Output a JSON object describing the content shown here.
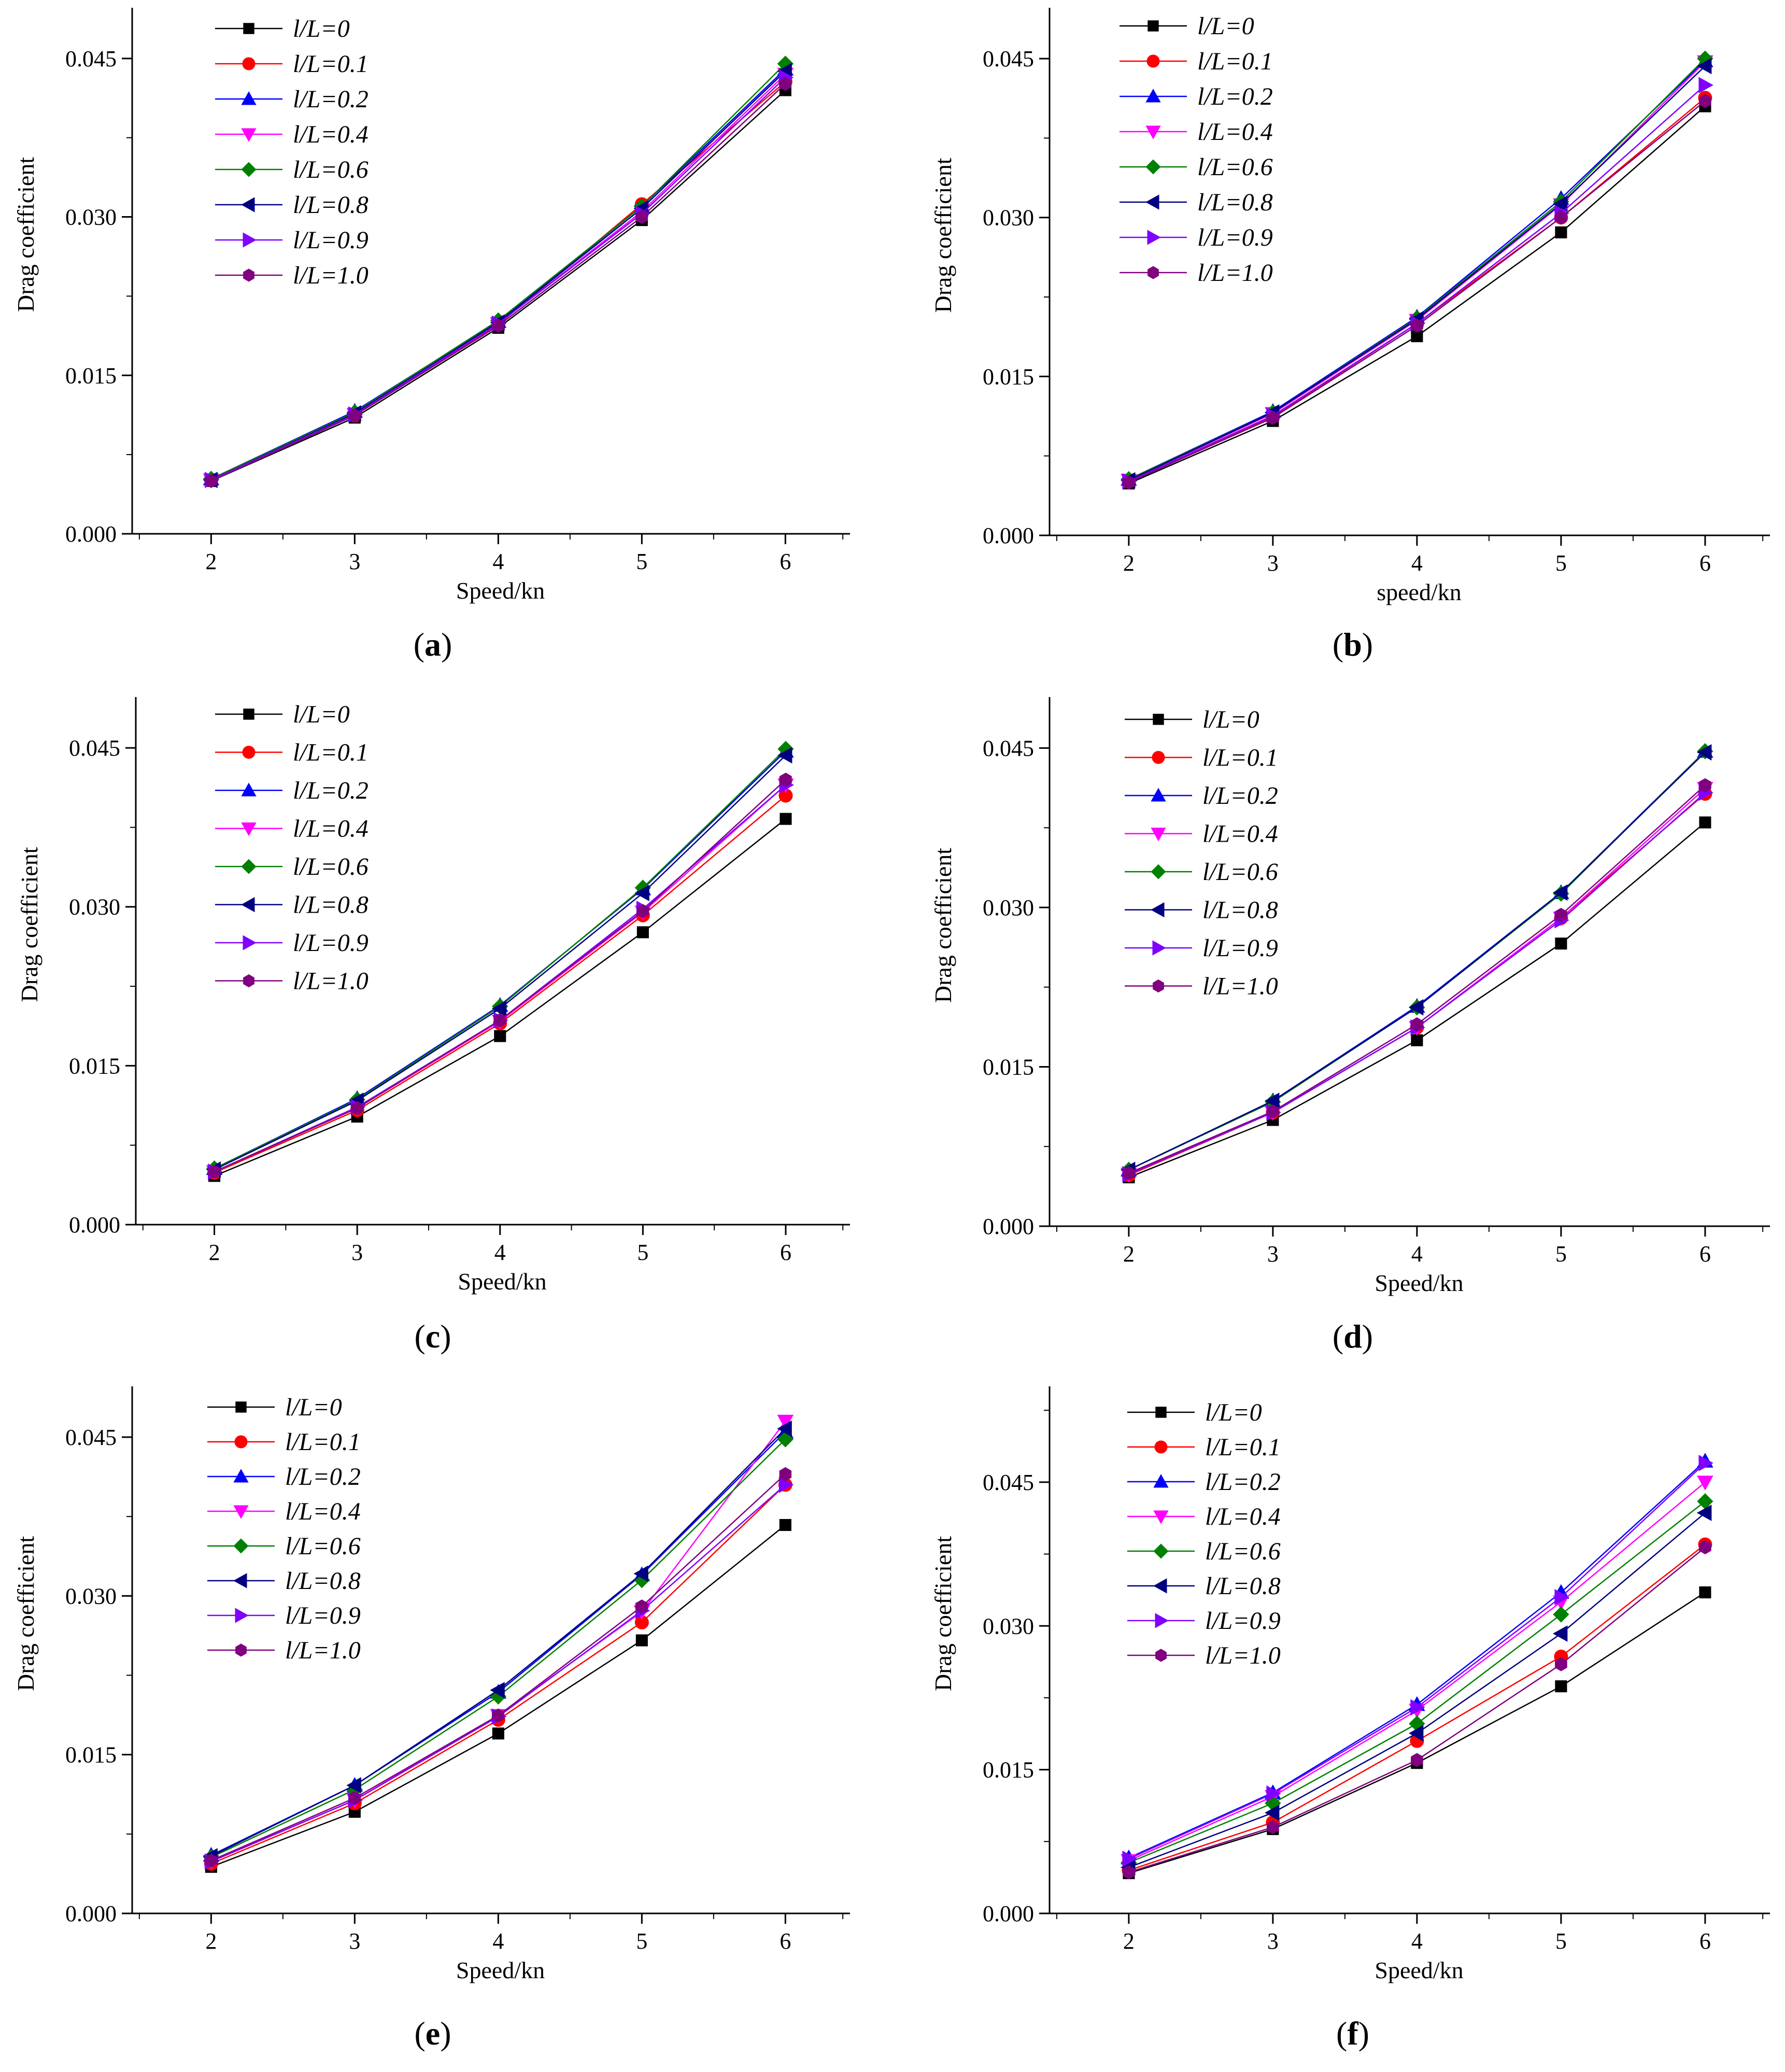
{
  "figure": {
    "series_names": [
      "l/L=0",
      "l/L=0.1",
      "l/L=0.2",
      "l/L=0.4",
      "l/L=0.6",
      "l/L=0.8",
      "l/L=0.9",
      "l/L=1.0"
    ],
    "series_colors": [
      "#000000",
      "#ff0000",
      "#0000ff",
      "#ff00ff",
      "#008000",
      "#000080",
      "#8000ff",
      "#800080"
    ],
    "series_markers": [
      "square",
      "circle",
      "triangle-up",
      "triangle-down",
      "diamond",
      "triangle-left",
      "triangle-right",
      "hexagon"
    ]
  },
  "chart_data": [
    {
      "type": "line",
      "caption_letter": "a",
      "xlabel": "Speed/kn",
      "ylabel": "Drag coefficient",
      "x": [
        2,
        3,
        4,
        5,
        6
      ],
      "xticks": [
        "2",
        "3",
        "4",
        "5",
        "6"
      ],
      "yticks": [
        "0.000",
        "0.015",
        "0.030",
        "0.045"
      ],
      "xlim": [
        1.45,
        6.45
      ],
      "ylim": [
        0,
        0.0498
      ],
      "series": [
        {
          "name": "l/L=0",
          "values": [
            0.005,
            0.011,
            0.0195,
            0.0297,
            0.042
          ]
        },
        {
          "name": "l/L=0.1",
          "values": [
            0.0051,
            0.0112,
            0.0198,
            0.0312,
            0.0428
          ]
        },
        {
          "name": "l/L=0.2",
          "values": [
            0.0052,
            0.0116,
            0.0201,
            0.031,
            0.044
          ]
        },
        {
          "name": "l/L=0.4",
          "values": [
            0.0051,
            0.0113,
            0.0199,
            0.0305,
            0.0435
          ]
        },
        {
          "name": "l/L=0.6",
          "values": [
            0.0052,
            0.0115,
            0.0202,
            0.031,
            0.0445
          ]
        },
        {
          "name": "l/L=0.8",
          "values": [
            0.0051,
            0.0114,
            0.02,
            0.0308,
            0.0438
          ]
        },
        {
          "name": "l/L=0.9",
          "values": [
            0.0051,
            0.0113,
            0.0199,
            0.0303,
            0.0432
          ]
        },
        {
          "name": "l/L=1.0",
          "values": [
            0.005,
            0.0112,
            0.0197,
            0.03,
            0.0426
          ]
        }
      ]
    },
    {
      "type": "line",
      "caption_letter": "b",
      "xlabel": "speed/kn",
      "ylabel": "Drag coefficient",
      "x": [
        2,
        3,
        4,
        5,
        6
      ],
      "xticks": [
        "2",
        "3",
        "4",
        "5",
        "6"
      ],
      "yticks": [
        "0.000",
        "0.015",
        "0.030",
        "0.045"
      ],
      "xlim": [
        1.45,
        6.45
      ],
      "ylim": [
        0,
        0.0498
      ],
      "series": [
        {
          "name": "l/L=0",
          "values": [
            0.0049,
            0.0108,
            0.0188,
            0.0286,
            0.0405
          ]
        },
        {
          "name": "l/L=0.1",
          "values": [
            0.0051,
            0.0112,
            0.02,
            0.03,
            0.0413
          ]
        },
        {
          "name": "l/L=0.2",
          "values": [
            0.0053,
            0.0117,
            0.0206,
            0.0318,
            0.0448
          ]
        },
        {
          "name": "l/L=0.4",
          "values": [
            0.0052,
            0.0115,
            0.0203,
            0.0312,
            0.0447
          ]
        },
        {
          "name": "l/L=0.6",
          "values": [
            0.0053,
            0.0116,
            0.0205,
            0.0315,
            0.045
          ]
        },
        {
          "name": "l/L=0.8",
          "values": [
            0.0052,
            0.0116,
            0.0204,
            0.0313,
            0.0443
          ]
        },
        {
          "name": "l/L=0.9",
          "values": [
            0.0051,
            0.0113,
            0.02,
            0.0304,
            0.0425
          ]
        },
        {
          "name": "l/L=1.0",
          "values": [
            0.005,
            0.0111,
            0.0198,
            0.03,
            0.041
          ]
        }
      ]
    },
    {
      "type": "line",
      "caption_letter": "c",
      "xlabel": "Speed/kn",
      "ylabel": "Drag coefficient",
      "x": [
        2,
        3,
        4,
        5,
        6
      ],
      "xticks": [
        "2",
        "3",
        "4",
        "5",
        "6"
      ],
      "yticks": [
        "0.000",
        "0.015",
        "0.030",
        "0.045"
      ],
      "xlim": [
        1.45,
        6.45
      ],
      "ylim": [
        0,
        0.0498
      ],
      "series": [
        {
          "name": "l/L=0",
          "values": [
            0.0046,
            0.0102,
            0.0178,
            0.0276,
            0.0383
          ]
        },
        {
          "name": "l/L=0.1",
          "values": [
            0.0049,
            0.0108,
            0.019,
            0.0292,
            0.0405
          ]
        },
        {
          "name": "l/L=0.2",
          "values": [
            0.0053,
            0.0119,
            0.0207,
            0.0317,
            0.0447
          ]
        },
        {
          "name": "l/L=0.4",
          "values": [
            0.005,
            0.011,
            0.0192,
            0.0295,
            0.0415
          ]
        },
        {
          "name": "l/L=0.6",
          "values": [
            0.0053,
            0.0118,
            0.0206,
            0.0318,
            0.0449
          ]
        },
        {
          "name": "l/L=0.8",
          "values": [
            0.0052,
            0.0117,
            0.0204,
            0.0313,
            0.0443
          ]
        },
        {
          "name": "l/L=0.9",
          "values": [
            0.005,
            0.0111,
            0.0193,
            0.0298,
            0.0415
          ]
        },
        {
          "name": "l/L=1.0",
          "values": [
            0.005,
            0.011,
            0.0193,
            0.0296,
            0.042
          ]
        }
      ]
    },
    {
      "type": "line",
      "caption_letter": "d",
      "xlabel": "Speed/kn",
      "ylabel": "Drag coefficient",
      "x": [
        2,
        3,
        4,
        5,
        6
      ],
      "xticks": [
        "2",
        "3",
        "4",
        "5",
        "6"
      ],
      "yticks": [
        "0.000",
        "0.015",
        "0.030",
        "0.045"
      ],
      "xlim": [
        1.45,
        6.45
      ],
      "ylim": [
        0,
        0.0498
      ],
      "series": [
        {
          "name": "l/L=0",
          "values": [
            0.0046,
            0.01,
            0.0175,
            0.0266,
            0.038
          ]
        },
        {
          "name": "l/L=0.1",
          "values": [
            0.0048,
            0.0107,
            0.0187,
            0.029,
            0.0407
          ]
        },
        {
          "name": "l/L=0.2",
          "values": [
            0.0053,
            0.0118,
            0.0207,
            0.0314,
            0.0447
          ]
        },
        {
          "name": "l/L=0.4",
          "values": [
            0.0049,
            0.0107,
            0.0187,
            0.029,
            0.0412
          ]
        },
        {
          "name": "l/L=0.6",
          "values": [
            0.0053,
            0.0117,
            0.0206,
            0.0313,
            0.0447
          ]
        },
        {
          "name": "l/L=0.8",
          "values": [
            0.0053,
            0.0118,
            0.0206,
            0.0314,
            0.0446
          ]
        },
        {
          "name": "l/L=0.9",
          "values": [
            0.0049,
            0.0107,
            0.0187,
            0.0288,
            0.0408
          ]
        },
        {
          "name": "l/L=1.0",
          "values": [
            0.005,
            0.0108,
            0.019,
            0.0293,
            0.0415
          ]
        }
      ]
    },
    {
      "type": "line",
      "caption_letter": "e",
      "xlabel": "Speed/kn",
      "ylabel": "Drag coefficient",
      "x": [
        2,
        3,
        4,
        5,
        6
      ],
      "xticks": [
        "2",
        "3",
        "4",
        "5",
        "6"
      ],
      "yticks": [
        "0.000",
        "0.015",
        "0.030",
        "0.045"
      ],
      "xlim": [
        1.45,
        6.45
      ],
      "ylim": [
        0,
        0.0498
      ],
      "series": [
        {
          "name": "l/L=0",
          "values": [
            0.0044,
            0.0096,
            0.017,
            0.0258,
            0.0367
          ]
        },
        {
          "name": "l/L=0.1",
          "values": [
            0.0047,
            0.0104,
            0.0183,
            0.0275,
            0.0405
          ]
        },
        {
          "name": "l/L=0.2",
          "values": [
            0.0055,
            0.0121,
            0.0209,
            0.032,
            0.0455
          ]
        },
        {
          "name": "l/L=0.4",
          "values": [
            0.0049,
            0.0107,
            0.0187,
            0.0285,
            0.0465
          ]
        },
        {
          "name": "l/L=0.6",
          "values": [
            0.0053,
            0.0117,
            0.0205,
            0.0315,
            0.0448
          ]
        },
        {
          "name": "l/L=0.8",
          "values": [
            0.0054,
            0.0121,
            0.0211,
            0.0321,
            0.0458
          ]
        },
        {
          "name": "l/L=0.9",
          "values": [
            0.0049,
            0.0107,
            0.0186,
            0.0286,
            0.0405
          ]
        },
        {
          "name": "l/L=1.0",
          "values": [
            0.005,
            0.0109,
            0.0187,
            0.029,
            0.0415
          ]
        }
      ]
    },
    {
      "type": "line",
      "caption_letter": "f",
      "xlabel": "Speed/kn",
      "ylabel": "Drag coefficient",
      "x": [
        2,
        3,
        4,
        5,
        6
      ],
      "xticks": [
        "2",
        "3",
        "4",
        "5",
        "6"
      ],
      "yticks": [
        "0.000",
        "0.015",
        "0.030",
        "0.045"
      ],
      "xlim": [
        1.45,
        6.45
      ],
      "ylim": [
        0,
        0.055
      ],
      "series": [
        {
          "name": "l/L=0",
          "values": [
            0.0042,
            0.0088,
            0.0157,
            0.0237,
            0.0335
          ]
        },
        {
          "name": "l/L=0.1",
          "values": [
            0.0045,
            0.0095,
            0.018,
            0.0268,
            0.0385
          ]
        },
        {
          "name": "l/L=0.2",
          "values": [
            0.0058,
            0.0126,
            0.0218,
            0.0335,
            0.0472
          ]
        },
        {
          "name": "l/L=0.4",
          "values": [
            0.0055,
            0.0122,
            0.0212,
            0.0325,
            0.045
          ]
        },
        {
          "name": "l/L=0.6",
          "values": [
            0.0053,
            0.0115,
            0.0198,
            0.0312,
            0.043
          ]
        },
        {
          "name": "l/L=0.8",
          "values": [
            0.0048,
            0.0105,
            0.0188,
            0.0292,
            0.0418
          ]
        },
        {
          "name": "l/L=0.9",
          "values": [
            0.0057,
            0.0125,
            0.0215,
            0.033,
            0.047
          ]
        },
        {
          "name": "l/L=1.0",
          "values": [
            0.0043,
            0.009,
            0.016,
            0.026,
            0.0382
          ]
        }
      ]
    }
  ]
}
